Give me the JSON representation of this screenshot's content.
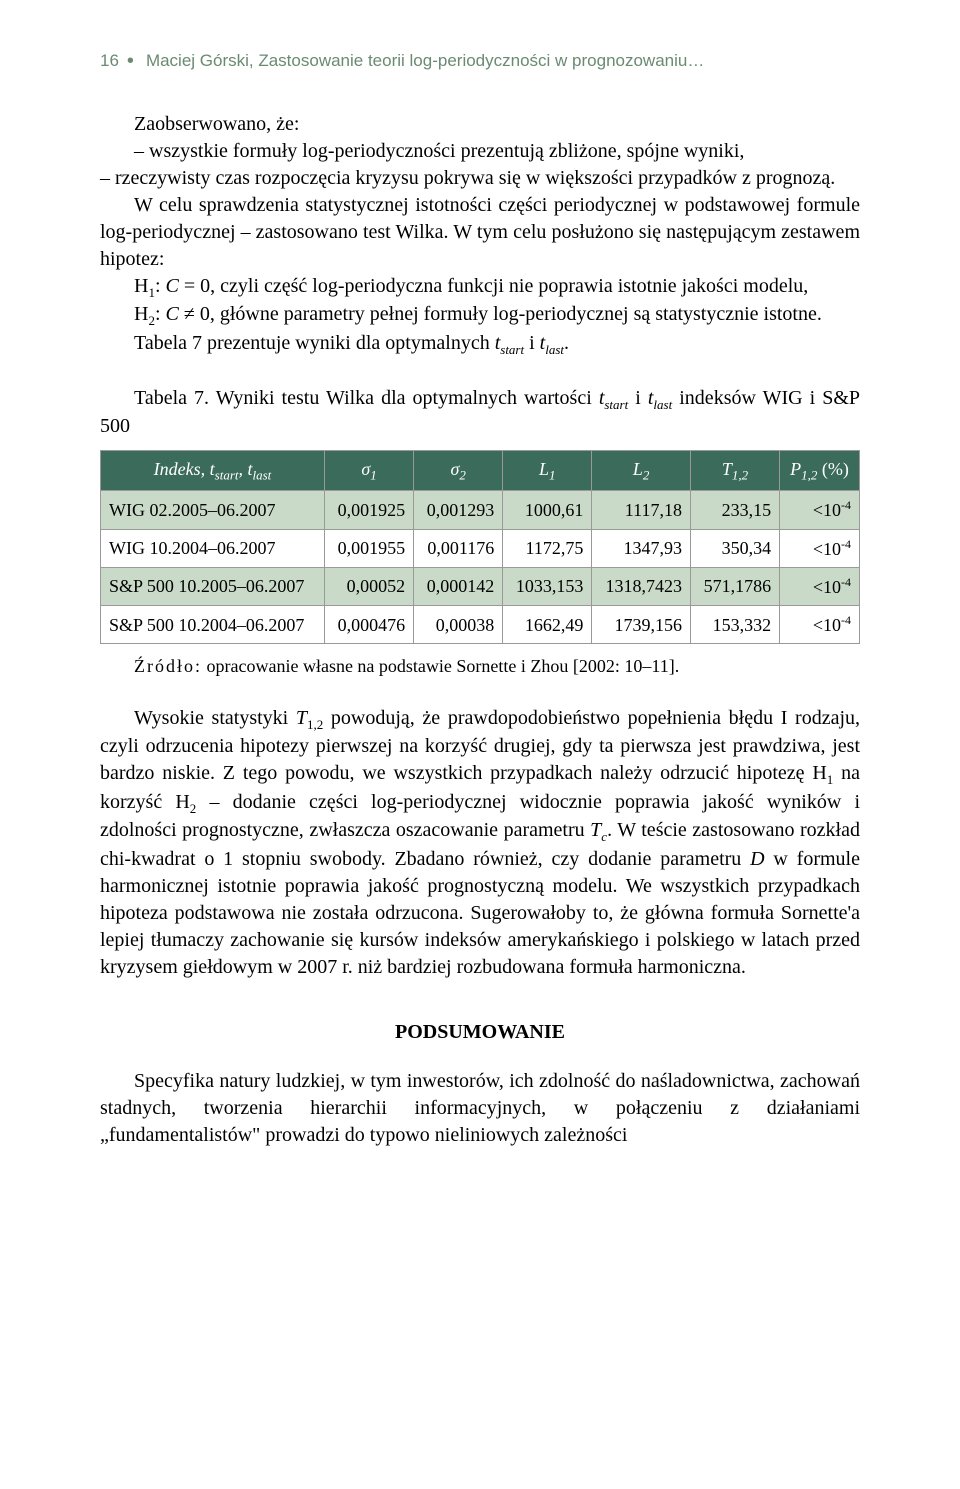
{
  "running_head": {
    "page_number": "16",
    "text": "Maciej Górski, Zastosowanie teorii log-periodyczności w prognozowaniu…",
    "color": "#6a8a71"
  },
  "body": {
    "p1": "Zaobserwowano, że:",
    "b1": "– wszystkie formuły log-periodyczności prezentują zbliżone, spójne wyniki,",
    "b2": "– rzeczywisty czas rozpoczęcia kryzysu pokrywa się w większości przypadków z prognozą.",
    "p2": "W celu sprawdzenia statystycznej istotności części periodycznej w podstawowej formule log-periodycznej – zastosowano test Wilka. W tym celu posłużono się następującym zestawem hipotez:",
    "h1_pre": "H",
    "h1_sub": "1",
    "h1_mid": ": ",
    "h1_C": "C",
    "h1_after": " = 0, czyli część log-periodyczna funkcji nie poprawia istotnie jakości modelu,",
    "h2_pre": "H",
    "h2_sub": "2",
    "h2_mid": ": ",
    "h2_C": "C",
    "h2_after": " ≠ 0, główne parametry pełnej formuły log-periodycznej są statystycznie istotne.",
    "p3_pre": "Tabela 7 prezentuje wyniki dla optymalnych ",
    "p3_t1": "t",
    "p3_s1": "start",
    "p3_and": " i ",
    "p3_t2": "t",
    "p3_s2": "last",
    "p3_end": "."
  },
  "table": {
    "caption_pre": "Tabela 7. Wyniki testu Wilka dla optymalnych wartości ",
    "caption_t1": "t",
    "caption_s1": "start",
    "caption_and": " i ",
    "caption_t2": "t",
    "caption_s2": "last",
    "caption_end": " indeksów WIG i S&P 500",
    "header_bg": "#3b6b5a",
    "header_fg": "#ffffff",
    "band_color": "#c9dbc8",
    "border_color": "#999999",
    "headers": {
      "c0_a": "Indeks, ",
      "c0_t1": "t",
      "c0_s1": "start",
      "c0_sep": ", ",
      "c0_t2": "t",
      "c0_s2": "last",
      "c1": "σ",
      "c1_sub": "1",
      "c2": "σ",
      "c2_sub": "2",
      "c3": "L",
      "c3_sub": "1",
      "c4": "L",
      "c4_sub": "2",
      "c5": "T",
      "c5_sub": "1,2",
      "c6": "P",
      "c6_sub": "1,2",
      "c6_suffix": " (%)"
    },
    "rows": [
      {
        "c0": "WIG 02.2005–06.2007",
        "c1": "0,001925",
        "c2": "0,001293",
        "c3": "1000,61",
        "c4": "1117,18",
        "c5": "233,15",
        "c6_pre": "<10",
        "c6_exp": "-4"
      },
      {
        "c0": "WIG 10.2004–06.2007",
        "c1": "0,001955",
        "c2": "0,001176",
        "c3": "1172,75",
        "c4": "1347,93",
        "c5": "350,34",
        "c6_pre": "<10",
        "c6_exp": "-4"
      },
      {
        "c0": "S&P 500 10.2005–06.2007",
        "c1": "0,00052",
        "c2": "0,000142",
        "c3": "1033,153",
        "c4": "1318,7423",
        "c5": "571,1786",
        "c6_pre": "<10",
        "c6_exp": "-4"
      },
      {
        "c0": "S&P 500 10.2004–06.2007",
        "c1": "0,000476",
        "c2": "0,00038",
        "c3": "1662,49",
        "c4": "1739,156",
        "c5": "153,332",
        "c6_pre": "<10",
        "c6_exp": "-4"
      }
    ],
    "source_label": "Źródło:",
    "source_text": " opracowanie własne na podstawie Sornette i Zhou [2002: 10–11]."
  },
  "after": {
    "p1_a": "Wysokie statystyki ",
    "p1_T": "T",
    "p1_Tsub": "1,2",
    "p1_b": " powodują, że prawdopodobieństwo popełnienia błędu I rodzaju, czyli odrzucenia hipotezy pierwszej na korzyść drugiej, gdy ta pierwsza jest prawdziwa, jest bardzo niskie. Z tego powodu, we wszystkich przypadkach należy odrzucić hipotezę H",
    "p1_H1sub": "1",
    "p1_c": " na korzyść H",
    "p1_H2sub": "2",
    "p1_d": " – dodanie części log-periodycznej widocznie poprawia jakość wyników i zdolności prognostyczne, zwłaszcza oszacowanie parametru ",
    "p1_Tc": "T",
    "p1_Tcsub": "c",
    "p1_e": ". W teście zastosowano rozkład chi-kwadrat o 1 stopniu swobody. Zbadano również, czy dodanie parametru ",
    "p1_D": "D",
    "p1_f": " w formule harmonicznej istotnie poprawia jakość prognostyczną modelu. We wszystkich przypadkach hipoteza podstawowa nie została odrzucona. Sugerowałoby to, że główna formuła Sornette'a lepiej tłumaczy zachowanie się kursów indeksów amerykańskiego i polskiego w latach przed kryzysem giełdowym w 2007 r. niż bardziej rozbudowana formuła harmoniczna."
  },
  "section_head": "PODSUMOWANIE",
  "last": {
    "p": "Specyfika natury ludzkiej, w tym inwestorów, ich zdolność do naśladownictwa, zachowań stadnych, tworzenia hierarchii informacyjnych, w połączeniu z działaniami „fundamentalistów\" prowadzi do typowo nieliniowych zależności"
  }
}
